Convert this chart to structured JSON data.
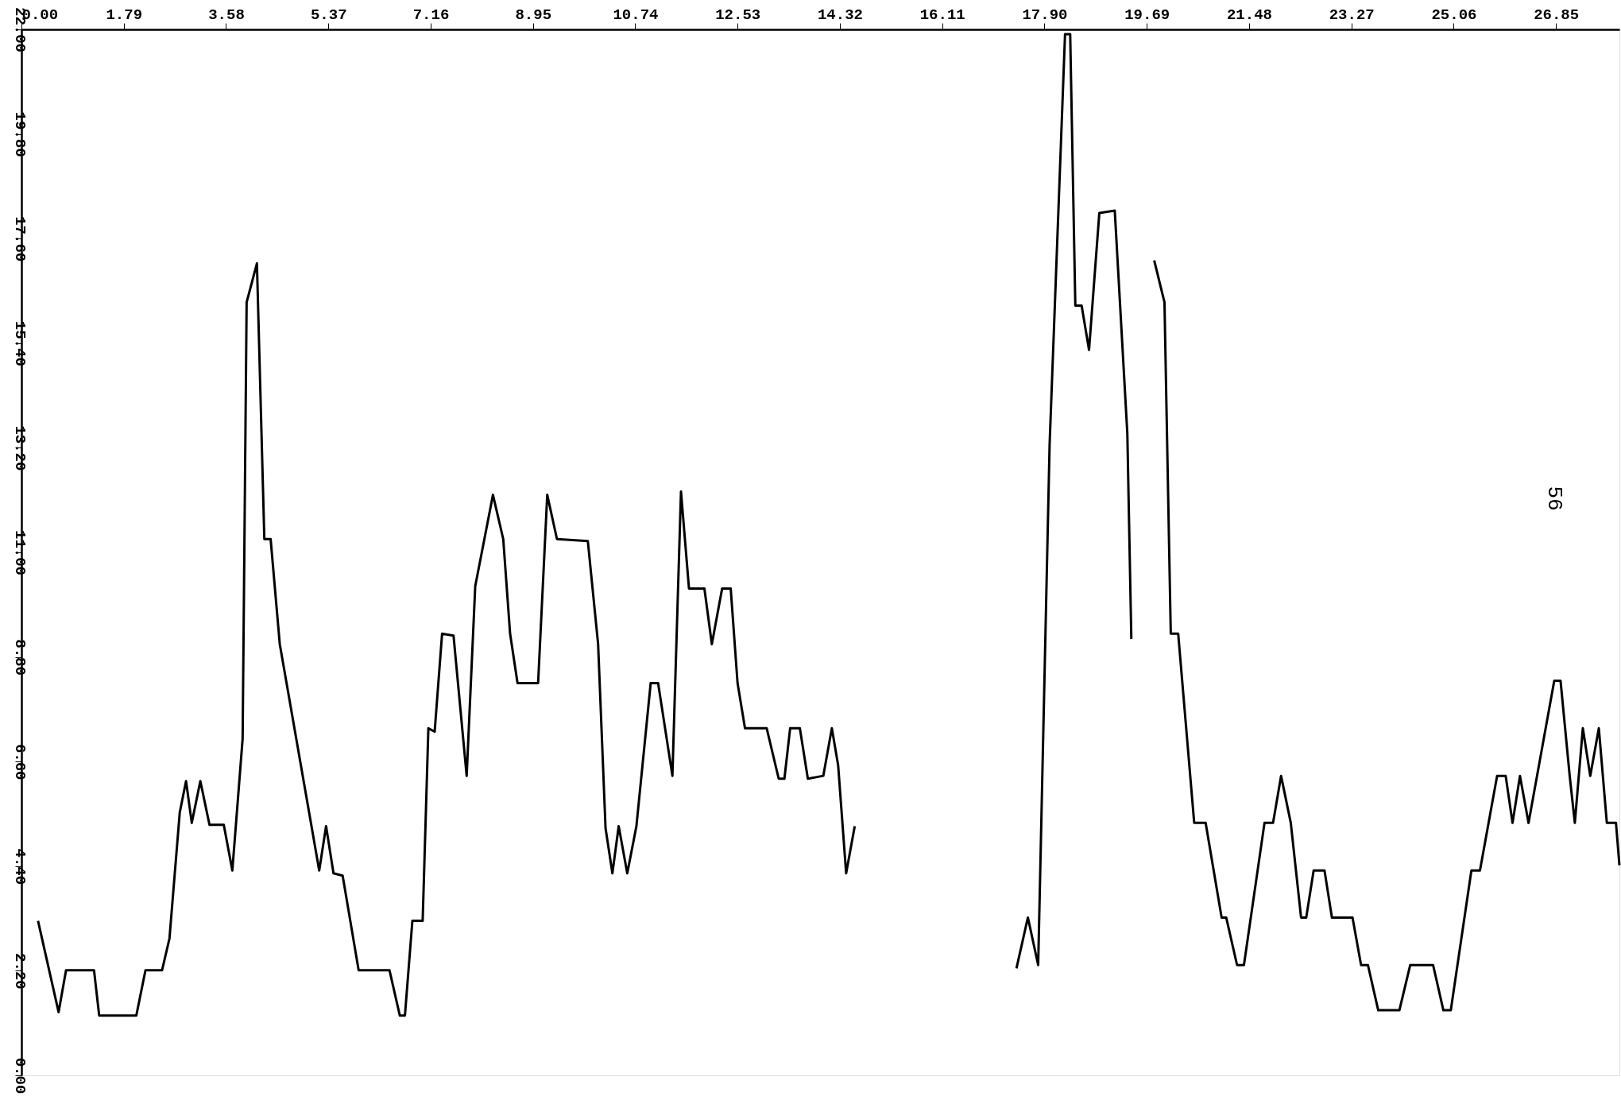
{
  "chart_data": {
    "type": "line",
    "xlim": [
      0,
      27.96
    ],
    "ylim": [
      0,
      22
    ],
    "xticks": [
      {
        "value": 0,
        "label": "0.00"
      },
      1.79,
      3.58,
      5.37,
      7.16,
      8.95,
      10.74,
      12.53,
      14.32,
      16.11,
      {
        "value": 17.9,
        "label": "17.90"
      },
      19.69,
      21.48,
      23.27,
      25.06,
      26.85
    ],
    "yticks": [
      {
        "value": 0,
        "label": "0.00"
      },
      {
        "value": 2.2,
        "label": "2.20"
      },
      {
        "value": 4.4,
        "label": "4.40"
      },
      {
        "value": 6.6,
        "label": "6.60"
      },
      {
        "value": 8.8,
        "label": "8.80"
      },
      {
        "value": 11,
        "label": "11.00"
      },
      {
        "value": 13.2,
        "label": "13.20"
      },
      {
        "value": 15.4,
        "label": "15.40"
      },
      {
        "value": 17.6,
        "label": "17.60"
      },
      {
        "value": 19.8,
        "label": "19.80"
      },
      {
        "value": 22,
        "label": "22.00"
      }
    ],
    "grid": false,
    "marker": "none",
    "line_style": "solid",
    "annotations": [
      "56"
    ],
    "x": [
      0.29,
      0.65,
      0.78,
      1.27,
      1.36,
      2.01,
      2.17,
      2.46,
      2.59,
      2.77,
      2.88,
      2.98,
      3.13,
      3.29,
      3.54,
      3.69,
      3.87,
      3.94,
      4.12,
      4.25,
      4.36,
      4.52,
      5.21,
      5.33,
      5.46,
      5.62,
      5.9,
      6.44,
      6.62,
      6.71,
      6.84,
      7.02,
      7.12,
      7.23,
      7.36,
      7.56,
      7.79,
      7.94,
      8.1,
      8.25,
      8.43,
      8.55,
      8.68,
      9.04,
      9.2,
      9.37,
      9.91,
      10.09,
      10.22,
      10.34,
      10.45,
      10.6,
      10.76,
      11.01,
      11.14,
      11.39,
      11.54,
      11.68,
      11.95,
      12.08,
      12.26,
      12.41,
      12.53,
      12.66,
      13.04,
      13.25,
      13.35,
      13.45,
      13.62,
      13.76,
      14.03,
      14.18,
      14.29,
      14.43,
      14.58,
      16.0,
      17.41,
      17.61,
      17.79,
      17.99,
      18.26,
      18.35,
      18.44,
      18.55,
      18.68,
      18.86,
      19.13,
      19.35,
      19.42,
      19.6,
      19.82,
      20.0,
      20.11,
      20.24,
      20.52,
      20.72,
      21.0,
      21.08,
      21.27,
      21.39,
      21.75,
      21.9,
      22.04,
      22.21,
      22.39,
      22.48,
      22.61,
      22.8,
      22.93,
      23.29,
      23.44,
      23.56,
      23.74,
      24.11,
      24.3,
      24.7,
      24.88,
      25.01,
      25.37,
      25.52,
      25.82,
      25.97,
      26.09,
      26.22,
      26.37,
      26.82,
      26.93,
      27.09,
      27.18,
      27.32,
      27.45,
      27.6,
      27.74,
      27.9,
      27.96
    ],
    "series": [
      {
        "color": "#000000",
        "values": [
          3.25,
          1.33,
          2.21,
          2.21,
          1.26,
          1.26,
          2.21,
          2.21,
          2.88,
          5.53,
          6.19,
          5.31,
          6.19,
          5.27,
          5.27,
          4.31,
          7.08,
          16.26,
          17.08,
          11.28,
          11.28,
          9.07,
          4.31,
          5.24,
          4.25,
          4.2,
          2.21,
          2.21,
          1.26,
          1.26,
          3.25,
          3.25,
          7.3,
          7.23,
          9.29,
          9.25,
          6.3,
          10.29,
          11.28,
          12.21,
          11.28,
          9.29,
          8.25,
          8.25,
          12.21,
          11.28,
          11.24,
          9.07,
          5.2,
          4.25,
          5.24,
          4.25,
          5.24,
          8.25,
          8.25,
          6.3,
          12.28,
          10.24,
          10.24,
          9.07,
          10.24,
          10.24,
          8.25,
          7.3,
          7.3,
          6.24,
          6.24,
          7.3,
          7.3,
          6.24,
          6.3,
          7.3,
          6.52,
          4.25,
          5.24,
          null,
          2.25,
          3.32,
          2.32,
          13.27,
          21.9,
          21.9,
          16.19,
          16.19,
          15.26,
          18.14,
          18.19,
          13.5,
          9.18,
          null,
          17.14,
          16.26,
          9.29,
          9.29,
          5.31,
          5.31,
          3.32,
          3.32,
          2.32,
          2.32,
          5.31,
          5.31,
          6.3,
          5.31,
          3.32,
          3.32,
          4.31,
          4.31,
          3.32,
          3.32,
          2.32,
          2.32,
          1.37,
          1.37,
          2.32,
          2.32,
          1.37,
          1.37,
          4.31,
          4.31,
          6.3,
          6.3,
          5.31,
          6.3,
          5.31,
          8.3,
          8.3,
          6.3,
          5.31,
          7.3,
          6.3,
          7.3,
          5.31,
          5.31,
          4.42
        ]
      }
    ]
  }
}
